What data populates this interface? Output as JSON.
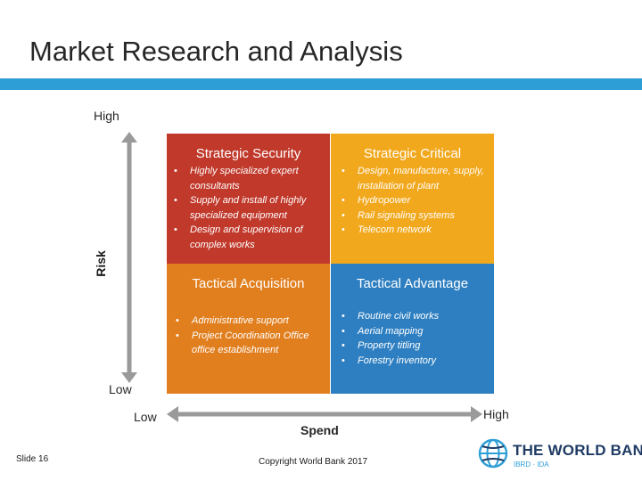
{
  "title": "Market Research and Analysis",
  "axes": {
    "risk_high": "High",
    "risk_low": "Low",
    "risk_label": "Risk",
    "spend_low": "Low",
    "spend_high": "High",
    "spend_label": "Spend"
  },
  "quadrants": {
    "strategic_security": {
      "title": "Strategic Security",
      "color": "#c0392b",
      "items": [
        "Highly specialized expert consultants",
        "Supply and install of highly specialized equipment",
        "Design and supervision of complex works"
      ]
    },
    "strategic_critical": {
      "title": "Strategic Critical",
      "color": "#f2a81d",
      "items": [
        "Design, manufacture, supply, installation of plant",
        "Hydropower",
        "Rail signaling systems",
        "Telecom network"
      ]
    },
    "tactical_acquisition": {
      "title": "Tactical Acquisition",
      "color": "#e17f1f",
      "items": [
        "Administrative support",
        "Project Coordination Office office establishment"
      ]
    },
    "tactical_advantage": {
      "title": "Tactical Advantage",
      "color": "#2e7fc1",
      "items": [
        "Routine civil works",
        "Aerial mapping",
        "Property titling",
        "Forestry inventory"
      ]
    }
  },
  "footer": {
    "slide": "Slide 16",
    "copyright": "Copyright World Bank 2017",
    "logo_text": "THE WORLD BANK",
    "logo_sub": "IBRD · IDA"
  },
  "colors": {
    "accent_bar": "#2e9fd6",
    "arrow": "#9a9a9a"
  }
}
